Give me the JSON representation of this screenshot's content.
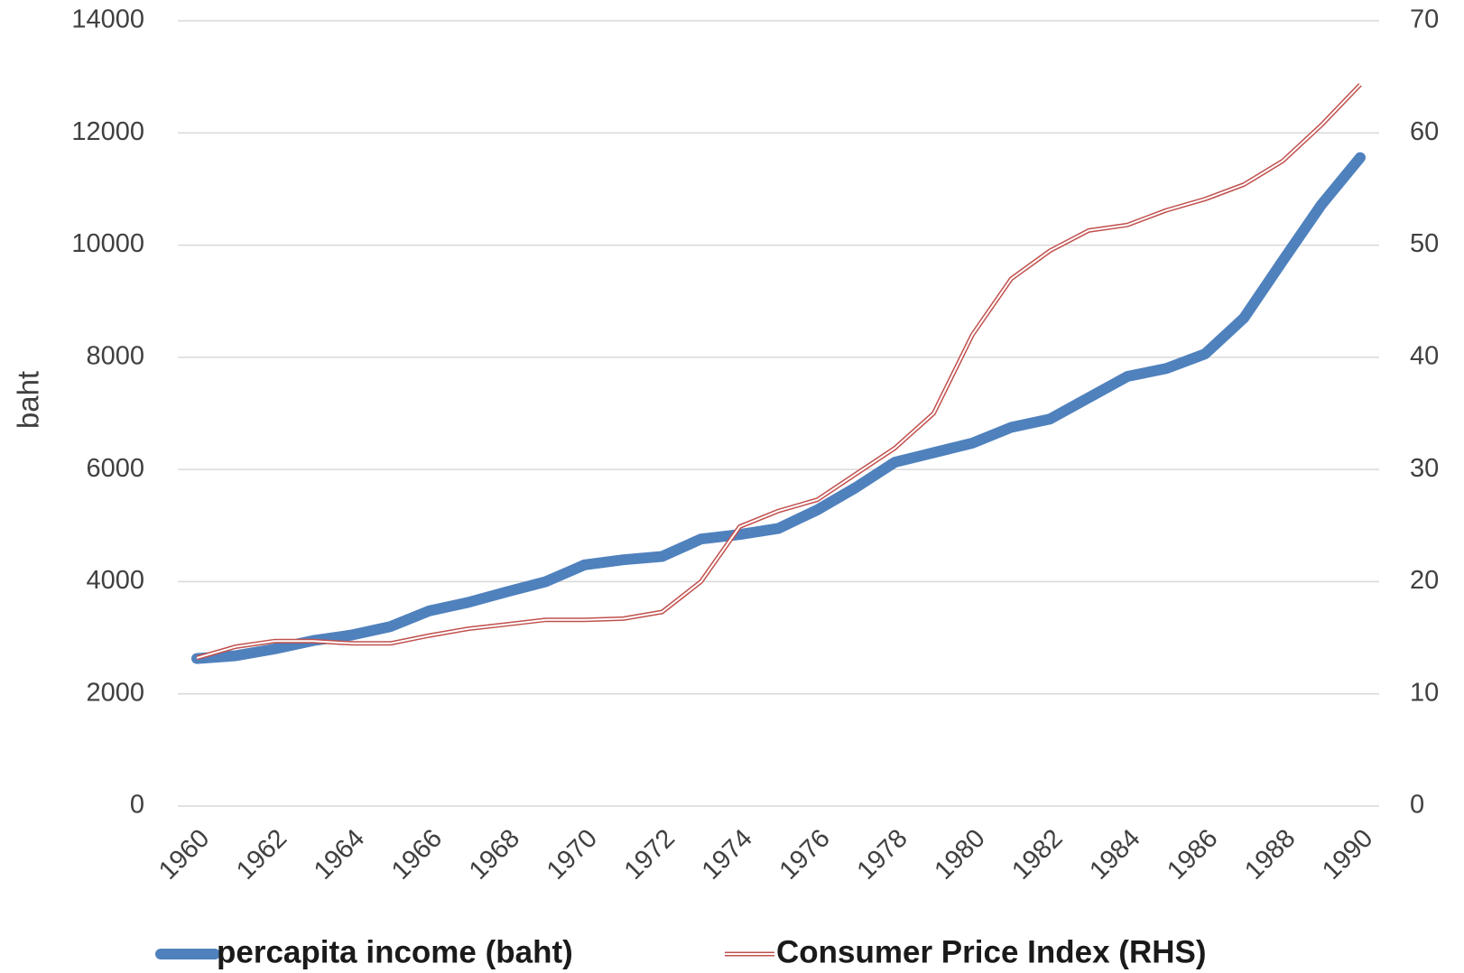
{
  "chart_data": {
    "type": "line",
    "y_label": "baht",
    "categories": [
      "1960",
      null,
      "1962",
      null,
      "1964",
      null,
      "1966",
      null,
      "1968",
      null,
      "1970",
      null,
      "1972",
      null,
      "1974",
      null,
      "1976",
      null,
      "1978",
      null,
      "1980",
      null,
      "1982",
      null,
      "1984",
      null,
      "1986",
      null,
      "1988",
      null,
      "1990"
    ],
    "series": [
      {
        "name": "percapita income (baht)",
        "color": "#4f81bd",
        "values": [
          2630,
          2680,
          2800,
          2950,
          3050,
          3200,
          3480,
          3630,
          3820,
          4000,
          4300,
          4390,
          4450,
          4760,
          4840,
          4950,
          5280,
          5680,
          6130,
          6300,
          6470,
          6750,
          6900,
          7280,
          7660,
          7800,
          8060,
          8700,
          9720,
          10720,
          11560
        ]
      },
      {
        "name": "Consumer Price Index (RHS)",
        "color": "#c0504d",
        "axis": "y2",
        "values": [
          13.2,
          14.2,
          14.7,
          14.7,
          14.5,
          14.5,
          15.2,
          15.8,
          16.2,
          16.6,
          16.6,
          16.7,
          17.3,
          20.0,
          24.9,
          26.3,
          27.3,
          29.6,
          31.9,
          35.0,
          42.0,
          47.0,
          49.5,
          51.3,
          51.8,
          53.1,
          54.1,
          55.4,
          57.5,
          60.7,
          64.3
        ]
      }
    ],
    "ylim": [
      0,
      14000
    ],
    "yticks": [
      0,
      2000,
      4000,
      6000,
      8000,
      10000,
      12000,
      14000
    ],
    "y2lim": [
      0,
      70
    ],
    "y2ticks": [
      0,
      10,
      20,
      30,
      40,
      50,
      60,
      70
    ],
    "grid": true,
    "legend": "bottom"
  }
}
